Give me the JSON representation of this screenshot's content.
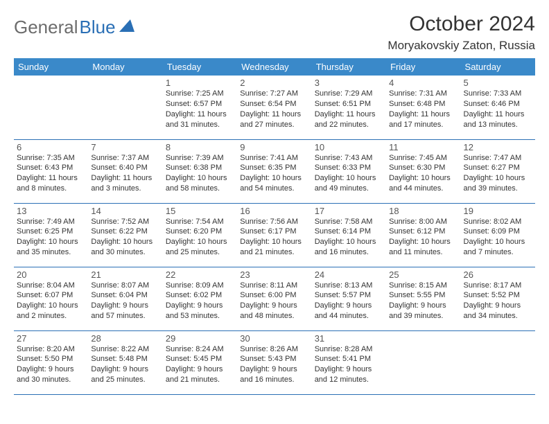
{
  "logo": {
    "general": "General",
    "blue": "Blue"
  },
  "header": {
    "month_title": "October 2024",
    "location": "Moryakovskiy Zaton, Russia"
  },
  "colors": {
    "header_bg": "#3a89c9",
    "header_text": "#ffffff",
    "border": "#2a6fb5",
    "logo_gray": "#6c6c6c",
    "logo_blue": "#2a6fb5",
    "title_text": "#333333",
    "daynum_text": "#555555",
    "body_text": "#333333",
    "page_bg": "#ffffff"
  },
  "weekdays": [
    "Sunday",
    "Monday",
    "Tuesday",
    "Wednesday",
    "Thursday",
    "Friday",
    "Saturday"
  ],
  "weeks": [
    [
      null,
      null,
      {
        "n": "1",
        "sr": "Sunrise: 7:25 AM",
        "ss": "Sunset: 6:57 PM",
        "dl": "Daylight: 11 hours and 31 minutes."
      },
      {
        "n": "2",
        "sr": "Sunrise: 7:27 AM",
        "ss": "Sunset: 6:54 PM",
        "dl": "Daylight: 11 hours and 27 minutes."
      },
      {
        "n": "3",
        "sr": "Sunrise: 7:29 AM",
        "ss": "Sunset: 6:51 PM",
        "dl": "Daylight: 11 hours and 22 minutes."
      },
      {
        "n": "4",
        "sr": "Sunrise: 7:31 AM",
        "ss": "Sunset: 6:48 PM",
        "dl": "Daylight: 11 hours and 17 minutes."
      },
      {
        "n": "5",
        "sr": "Sunrise: 7:33 AM",
        "ss": "Sunset: 6:46 PM",
        "dl": "Daylight: 11 hours and 13 minutes."
      }
    ],
    [
      {
        "n": "6",
        "sr": "Sunrise: 7:35 AM",
        "ss": "Sunset: 6:43 PM",
        "dl": "Daylight: 11 hours and 8 minutes."
      },
      {
        "n": "7",
        "sr": "Sunrise: 7:37 AM",
        "ss": "Sunset: 6:40 PM",
        "dl": "Daylight: 11 hours and 3 minutes."
      },
      {
        "n": "8",
        "sr": "Sunrise: 7:39 AM",
        "ss": "Sunset: 6:38 PM",
        "dl": "Daylight: 10 hours and 58 minutes."
      },
      {
        "n": "9",
        "sr": "Sunrise: 7:41 AM",
        "ss": "Sunset: 6:35 PM",
        "dl": "Daylight: 10 hours and 54 minutes."
      },
      {
        "n": "10",
        "sr": "Sunrise: 7:43 AM",
        "ss": "Sunset: 6:33 PM",
        "dl": "Daylight: 10 hours and 49 minutes."
      },
      {
        "n": "11",
        "sr": "Sunrise: 7:45 AM",
        "ss": "Sunset: 6:30 PM",
        "dl": "Daylight: 10 hours and 44 minutes."
      },
      {
        "n": "12",
        "sr": "Sunrise: 7:47 AM",
        "ss": "Sunset: 6:27 PM",
        "dl": "Daylight: 10 hours and 39 minutes."
      }
    ],
    [
      {
        "n": "13",
        "sr": "Sunrise: 7:49 AM",
        "ss": "Sunset: 6:25 PM",
        "dl": "Daylight: 10 hours and 35 minutes."
      },
      {
        "n": "14",
        "sr": "Sunrise: 7:52 AM",
        "ss": "Sunset: 6:22 PM",
        "dl": "Daylight: 10 hours and 30 minutes."
      },
      {
        "n": "15",
        "sr": "Sunrise: 7:54 AM",
        "ss": "Sunset: 6:20 PM",
        "dl": "Daylight: 10 hours and 25 minutes."
      },
      {
        "n": "16",
        "sr": "Sunrise: 7:56 AM",
        "ss": "Sunset: 6:17 PM",
        "dl": "Daylight: 10 hours and 21 minutes."
      },
      {
        "n": "17",
        "sr": "Sunrise: 7:58 AM",
        "ss": "Sunset: 6:14 PM",
        "dl": "Daylight: 10 hours and 16 minutes."
      },
      {
        "n": "18",
        "sr": "Sunrise: 8:00 AM",
        "ss": "Sunset: 6:12 PM",
        "dl": "Daylight: 10 hours and 11 minutes."
      },
      {
        "n": "19",
        "sr": "Sunrise: 8:02 AM",
        "ss": "Sunset: 6:09 PM",
        "dl": "Daylight: 10 hours and 7 minutes."
      }
    ],
    [
      {
        "n": "20",
        "sr": "Sunrise: 8:04 AM",
        "ss": "Sunset: 6:07 PM",
        "dl": "Daylight: 10 hours and 2 minutes."
      },
      {
        "n": "21",
        "sr": "Sunrise: 8:07 AM",
        "ss": "Sunset: 6:04 PM",
        "dl": "Daylight: 9 hours and 57 minutes."
      },
      {
        "n": "22",
        "sr": "Sunrise: 8:09 AM",
        "ss": "Sunset: 6:02 PM",
        "dl": "Daylight: 9 hours and 53 minutes."
      },
      {
        "n": "23",
        "sr": "Sunrise: 8:11 AM",
        "ss": "Sunset: 6:00 PM",
        "dl": "Daylight: 9 hours and 48 minutes."
      },
      {
        "n": "24",
        "sr": "Sunrise: 8:13 AM",
        "ss": "Sunset: 5:57 PM",
        "dl": "Daylight: 9 hours and 44 minutes."
      },
      {
        "n": "25",
        "sr": "Sunrise: 8:15 AM",
        "ss": "Sunset: 5:55 PM",
        "dl": "Daylight: 9 hours and 39 minutes."
      },
      {
        "n": "26",
        "sr": "Sunrise: 8:17 AM",
        "ss": "Sunset: 5:52 PM",
        "dl": "Daylight: 9 hours and 34 minutes."
      }
    ],
    [
      {
        "n": "27",
        "sr": "Sunrise: 8:20 AM",
        "ss": "Sunset: 5:50 PM",
        "dl": "Daylight: 9 hours and 30 minutes."
      },
      {
        "n": "28",
        "sr": "Sunrise: 8:22 AM",
        "ss": "Sunset: 5:48 PM",
        "dl": "Daylight: 9 hours and 25 minutes."
      },
      {
        "n": "29",
        "sr": "Sunrise: 8:24 AM",
        "ss": "Sunset: 5:45 PM",
        "dl": "Daylight: 9 hours and 21 minutes."
      },
      {
        "n": "30",
        "sr": "Sunrise: 8:26 AM",
        "ss": "Sunset: 5:43 PM",
        "dl": "Daylight: 9 hours and 16 minutes."
      },
      {
        "n": "31",
        "sr": "Sunrise: 8:28 AM",
        "ss": "Sunset: 5:41 PM",
        "dl": "Daylight: 9 hours and 12 minutes."
      },
      null,
      null
    ]
  ]
}
